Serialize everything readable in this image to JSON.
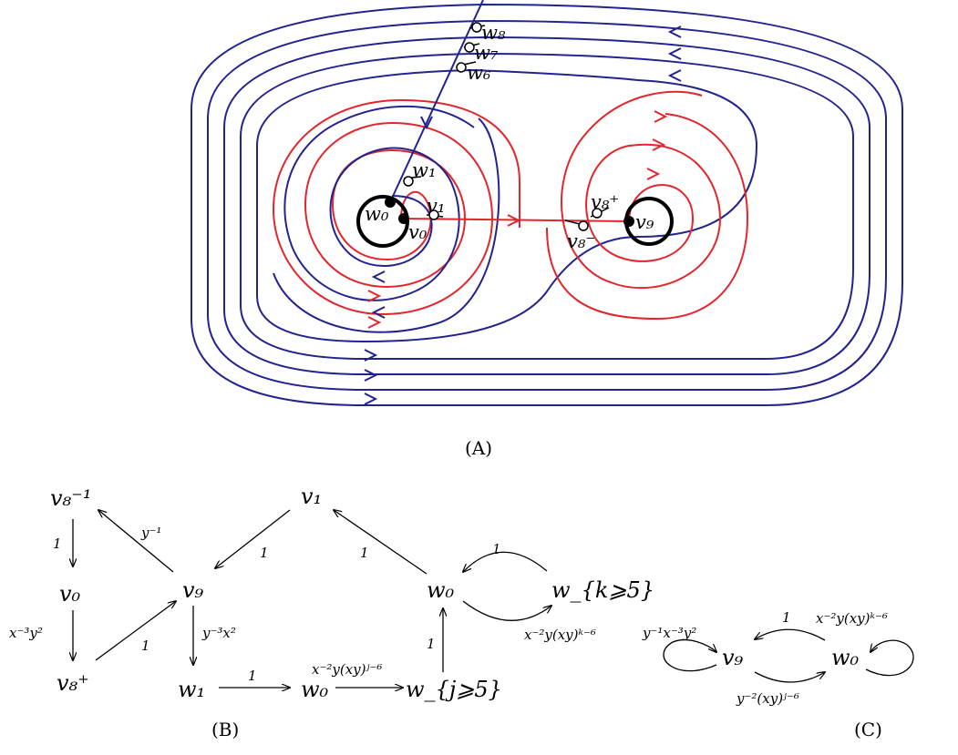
{
  "colors": {
    "red": "#e3262d",
    "blue": "#23238f",
    "black": "#000000"
  },
  "panel_a": {
    "caption": "(A)",
    "labels": {
      "w8": "w₈",
      "w7": "w₇",
      "w6": "w₆",
      "w1": "w₁",
      "w0": "w₀",
      "v1": "v₁",
      "v0": "v₀",
      "v8p": "v₈⁺",
      "v8m": "v₈⁻",
      "v9": "v₉"
    }
  },
  "panel_b": {
    "caption": "(B)",
    "nodes": {
      "v8inv": "v₈⁻¹",
      "v0": "v₀",
      "v8p": "v₈⁺",
      "v9": "v₉",
      "v1": "v₁",
      "w1": "w₁",
      "w0b": "w₀",
      "wj": "w_{j⩾5}",
      "w0": "w₀",
      "wk": "w_{k⩾5}"
    },
    "edges": {
      "v8inv_v0": "1",
      "v0_v8p": "x⁻³y²",
      "v8p_v9": "1",
      "v9_v8inv": "y⁻¹",
      "v1_v9": "1",
      "w0_v1": "1",
      "v9_w1": "y⁻³x²",
      "w1_w0b": "1",
      "w0b_wj": "x⁻²y(xy)ʲ⁻⁶",
      "wj_w0": "1",
      "wk_w0": "1",
      "w0_wk": "x⁻²y(xy)ᵏ⁻⁶"
    }
  },
  "panel_c": {
    "caption": "(C)",
    "nodes": {
      "v9": "v₉",
      "w0": "w₀"
    },
    "edges": {
      "v9_loop": "y⁻¹x⁻³y²",
      "w0_v9": "1",
      "v9_w0": "y⁻²(xy)ʲ⁻⁶",
      "w0_loop": "x⁻²y(xy)ᵏ⁻⁶"
    }
  }
}
